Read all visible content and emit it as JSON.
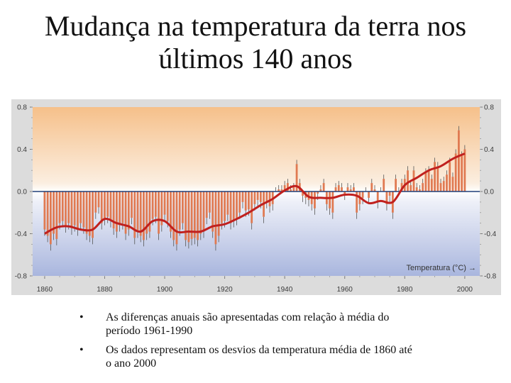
{
  "slide": {
    "title_line1": "Mudança na temperatura da terra nos",
    "title_line2": "últimos 140 anos",
    "bullets": [
      "As diferenças anuais são apresentadas com relação à média do período 1961-1990",
      "Os dados representam os desvios da temperatura média de 1860 até o ano 2000"
    ]
  },
  "chart_data": {
    "type": "bar",
    "title": "",
    "xlabel": "",
    "ylabel": "",
    "annotation": "Temperatura (°C) →",
    "xlim": [
      1856,
      2005
    ],
    "ylim": [
      -0.8,
      0.8
    ],
    "x_ticks": [
      1860,
      1880,
      1900,
      1920,
      1940,
      1960,
      1980,
      2000
    ],
    "x_tick_labels": [
      "1860",
      "1880",
      "1900",
      "1920",
      "1940",
      "1960",
      "1980",
      "2000"
    ],
    "y_ticks": [
      0.8,
      0.4,
      0.0,
      -0.4,
      -0.8
    ],
    "y_tick_labels_left": [
      "0.8",
      "0.4",
      "0.0",
      "-0.4",
      "-0.8"
    ],
    "y_tick_labels_right": [
      "0.8",
      "0.4",
      "0.0",
      "-0.4",
      "-0.8"
    ],
    "colors": {
      "bars": "#e07a52",
      "smooth_line": "#c0201e",
      "zero_line": "#1f3f78",
      "axis_text": "#3a3a3a",
      "bg_top": "#f6c08a",
      "bg_bottom": "#a9b6de",
      "frame": "#dddddd"
    },
    "series": [
      {
        "x": [
          1860,
          1861,
          1862,
          1863,
          1864,
          1865,
          1866,
          1867,
          1868,
          1869,
          1870,
          1871,
          1872,
          1873,
          1874,
          1875,
          1876,
          1877,
          1878,
          1879,
          1880,
          1881,
          1882,
          1883,
          1884,
          1885,
          1886,
          1887,
          1888,
          1889,
          1890,
          1891,
          1892,
          1893,
          1894,
          1895,
          1896,
          1897,
          1898,
          1899,
          1900,
          1901,
          1902,
          1903,
          1904,
          1905,
          1906,
          1907,
          1908,
          1909,
          1910,
          1911,
          1912,
          1913,
          1914,
          1915,
          1916,
          1917,
          1918,
          1919,
          1920,
          1921,
          1922,
          1923,
          1924,
          1925,
          1926,
          1927,
          1928,
          1929,
          1930,
          1931,
          1932,
          1933,
          1934,
          1935,
          1936,
          1937,
          1938,
          1939,
          1940,
          1941,
          1942,
          1943,
          1944,
          1945,
          1946,
          1947,
          1948,
          1949,
          1950,
          1951,
          1952,
          1953,
          1954,
          1955,
          1956,
          1957,
          1958,
          1959,
          1960,
          1961,
          1962,
          1963,
          1964,
          1965,
          1966,
          1967,
          1968,
          1969,
          1970,
          1971,
          1972,
          1973,
          1974,
          1975,
          1976,
          1977,
          1978,
          1979,
          1980,
          1981,
          1982,
          1983,
          1984,
          1985,
          1986,
          1987,
          1988,
          1989,
          1990,
          1991,
          1992,
          1993,
          1994,
          1995,
          1996,
          1997,
          1998,
          1999,
          2000
        ],
        "values": [
          -0.36,
          -0.42,
          -0.5,
          -0.4,
          -0.45,
          -0.3,
          -0.28,
          -0.33,
          -0.3,
          -0.35,
          -0.32,
          -0.36,
          -0.3,
          -0.34,
          -0.4,
          -0.42,
          -0.44,
          -0.2,
          -0.15,
          -0.3,
          -0.26,
          -0.24,
          -0.28,
          -0.35,
          -0.38,
          -0.32,
          -0.3,
          -0.4,
          -0.36,
          -0.25,
          -0.44,
          -0.38,
          -0.42,
          -0.46,
          -0.4,
          -0.38,
          -0.26,
          -0.24,
          -0.4,
          -0.32,
          -0.22,
          -0.28,
          -0.38,
          -0.46,
          -0.5,
          -0.36,
          -0.3,
          -0.46,
          -0.48,
          -0.45,
          -0.44,
          -0.46,
          -0.4,
          -0.38,
          -0.25,
          -0.2,
          -0.38,
          -0.5,
          -0.42,
          -0.3,
          -0.28,
          -0.22,
          -0.3,
          -0.28,
          -0.26,
          -0.2,
          -0.1,
          -0.18,
          -0.17,
          -0.3,
          -0.12,
          -0.08,
          -0.1,
          -0.24,
          -0.1,
          -0.14,
          -0.12,
          0.0,
          0.02,
          0.02,
          0.06,
          0.08,
          0.02,
          0.04,
          0.26,
          0.08,
          -0.04,
          -0.06,
          -0.08,
          -0.12,
          -0.16,
          -0.02,
          0.02,
          0.08,
          -0.12,
          -0.16,
          -0.2,
          0.04,
          0.06,
          0.04,
          -0.02,
          0.04,
          0.02,
          0.04,
          -0.2,
          -0.12,
          -0.06,
          0.0,
          -0.06,
          0.08,
          0.02,
          -0.1,
          0.0,
          0.12,
          -0.12,
          -0.04,
          -0.2,
          0.12,
          0.0,
          0.08,
          0.12,
          0.2,
          0.06,
          0.2,
          0.04,
          0.02,
          0.08,
          0.18,
          0.2,
          0.12,
          0.28,
          0.24,
          0.08,
          0.1,
          0.16,
          0.28,
          0.14,
          0.36,
          0.58,
          0.34,
          0.4
        ]
      },
      {
        "name": "",
        "x": [
          1860,
          1864,
          1868,
          1872,
          1876,
          1880,
          1884,
          1888,
          1892,
          1896,
          1900,
          1904,
          1908,
          1912,
          1916,
          1920,
          1924,
          1928,
          1932,
          1936,
          1940,
          1944,
          1948,
          1952,
          1956,
          1960,
          1964,
          1968,
          1972,
          1976,
          1980,
          1984,
          1988,
          1992,
          1996,
          2000
        ],
        "values": [
          -0.4,
          -0.34,
          -0.33,
          -0.36,
          -0.36,
          -0.26,
          -0.3,
          -0.33,
          -0.38,
          -0.28,
          -0.28,
          -0.38,
          -0.38,
          -0.38,
          -0.33,
          -0.31,
          -0.26,
          -0.2,
          -0.13,
          -0.07,
          0.01,
          0.05,
          -0.05,
          -0.06,
          -0.06,
          -0.03,
          -0.04,
          -0.11,
          -0.09,
          -0.1,
          0.06,
          0.13,
          0.2,
          0.24,
          0.31,
          0.36
        ]
      }
    ]
  }
}
